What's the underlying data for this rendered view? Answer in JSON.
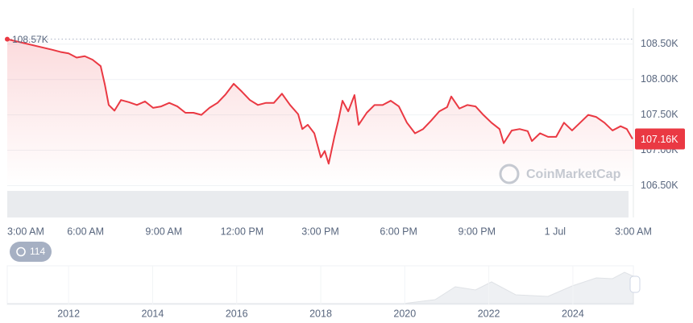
{
  "chart_data": {
    "type": "line",
    "color": "#ea3943",
    "grid": true,
    "xlim": [
      0,
      24
    ],
    "xticks": [
      {
        "value": 0,
        "label": "3:00 AM"
      },
      {
        "value": 3,
        "label": "6:00 AM"
      },
      {
        "value": 6,
        "label": "9:00 AM"
      },
      {
        "value": 9,
        "label": "12:00 PM"
      },
      {
        "value": 12,
        "label": "3:00 PM"
      },
      {
        "value": 15,
        "label": "6:00 PM"
      },
      {
        "value": 18,
        "label": "9:00 PM"
      },
      {
        "value": 21,
        "label": "1 Jul"
      },
      {
        "value": 24,
        "label": "3:00 AM"
      }
    ],
    "ylim": [
      106.05,
      109.01
    ],
    "yticks": [
      {
        "value": 108.5,
        "label": "108.50K"
      },
      {
        "value": 108,
        "label": "108.00K"
      },
      {
        "value": 107.5,
        "label": "107.50K"
      },
      {
        "value": 107,
        "label": "107.00K"
      },
      {
        "value": 106.5,
        "label": "106.50K"
      }
    ],
    "x": [
      0,
      1.73,
      2.04,
      2.35,
      2.66,
      2.97,
      3.27,
      3.58,
      3.74,
      3.89,
      4.11,
      4.36,
      4.66,
      4.97,
      5.28,
      5.59,
      5.9,
      6.21,
      6.52,
      6.83,
      7.14,
      7.44,
      7.75,
      8.06,
      8.37,
      8.68,
      8.99,
      9.3,
      9.61,
      9.92,
      10.22,
      10.53,
      10.84,
      11.15,
      11.31,
      11.52,
      11.77,
      12.02,
      12.17,
      12.32,
      12.54,
      12.69,
      12.85,
      13.07,
      13.31,
      13.47,
      13.78,
      14.08,
      14.39,
      14.7,
      15.01,
      15.32,
      15.63,
      15.94,
      16.25,
      16.56,
      16.86,
      17.02,
      17.33,
      17.64,
      17.95,
      18.25,
      18.56,
      18.87,
      19.03,
      19.34,
      19.64,
      19.95,
      20.11,
      20.42,
      20.73,
      21.04,
      21.34,
      21.65,
      21.96,
      22.27,
      22.58,
      22.89,
      23.2,
      23.51,
      23.75,
      23.97
    ],
    "values": [
      108.57,
      108.42,
      108.39,
      108.37,
      108.31,
      108.33,
      108.28,
      108.19,
      107.93,
      107.64,
      107.56,
      107.71,
      107.68,
      107.64,
      107.69,
      107.6,
      107.62,
      107.67,
      107.62,
      107.53,
      107.53,
      107.5,
      107.6,
      107.67,
      107.79,
      107.94,
      107.83,
      107.71,
      107.64,
      107.67,
      107.67,
      107.8,
      107.64,
      107.51,
      107.3,
      107.36,
      107.24,
      106.9,
      106.99,
      106.81,
      107.19,
      107.42,
      107.7,
      107.55,
      107.78,
      107.36,
      107.53,
      107.64,
      107.64,
      107.7,
      107.62,
      107.39,
      107.24,
      107.3,
      107.42,
      107.55,
      107.61,
      107.76,
      107.59,
      107.64,
      107.62,
      107.5,
      107.39,
      107.3,
      107.1,
      107.28,
      107.3,
      107.27,
      107.13,
      107.24,
      107.19,
      107.19,
      107.39,
      107.28,
      107.39,
      107.5,
      107.47,
      107.39,
      107.28,
      107.34,
      107.3,
      107.16
    ],
    "value_labels": [
      "108.57K",
      null,
      null,
      null,
      null,
      null,
      null,
      null,
      null,
      null,
      null,
      null,
      null,
      null,
      null,
      null,
      null,
      null,
      null,
      null,
      null,
      null,
      null,
      null,
      null,
      null,
      null,
      null,
      null,
      null,
      null,
      null,
      null,
      null,
      null,
      null,
      null,
      null,
      null,
      null,
      null,
      null,
      null,
      null,
      null,
      null,
      null,
      null,
      null,
      null,
      null,
      null,
      null,
      null,
      null,
      null,
      null,
      null,
      null,
      null,
      null,
      null,
      null,
      null,
      null,
      null,
      null,
      null,
      null,
      null,
      null,
      null,
      null,
      null,
      null,
      null,
      null,
      null,
      null,
      null,
      null,
      "107.16K"
    ],
    "watermark": "CoinMarketCap",
    "badge": "114",
    "overview": {
      "xlim": [
        2010.54,
        2025.44
      ],
      "xticks": [
        2012,
        2014,
        2016,
        2018,
        2020,
        2022,
        2024
      ]
    }
  }
}
